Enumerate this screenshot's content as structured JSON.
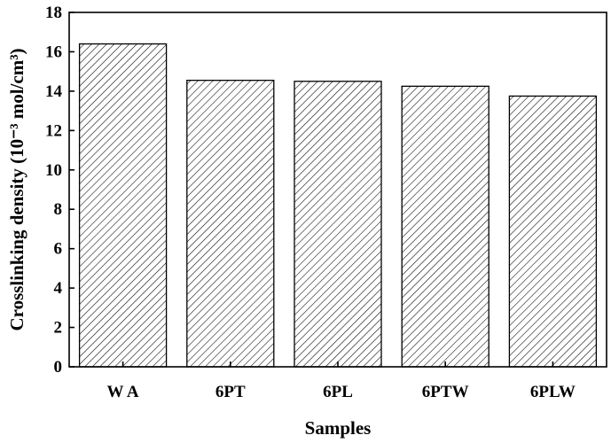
{
  "chart_data": {
    "type": "bar",
    "categories": [
      "W A",
      "6PT",
      "6PL",
      "6PTW",
      "6PLW"
    ],
    "values": [
      16.4,
      14.55,
      14.5,
      14.25,
      13.75
    ],
    "title": "",
    "xlabel": "Samples",
    "ylabel": "Crosslinking density (10⁻³ mol/cm³)",
    "ylim": [
      0,
      18
    ],
    "yticks": [
      0,
      2,
      4,
      6,
      8,
      10,
      12,
      14,
      16,
      18
    ],
    "grid": false,
    "legend": "none",
    "bar_fill": "diagonal-hatch",
    "bar_color": "#000000"
  }
}
